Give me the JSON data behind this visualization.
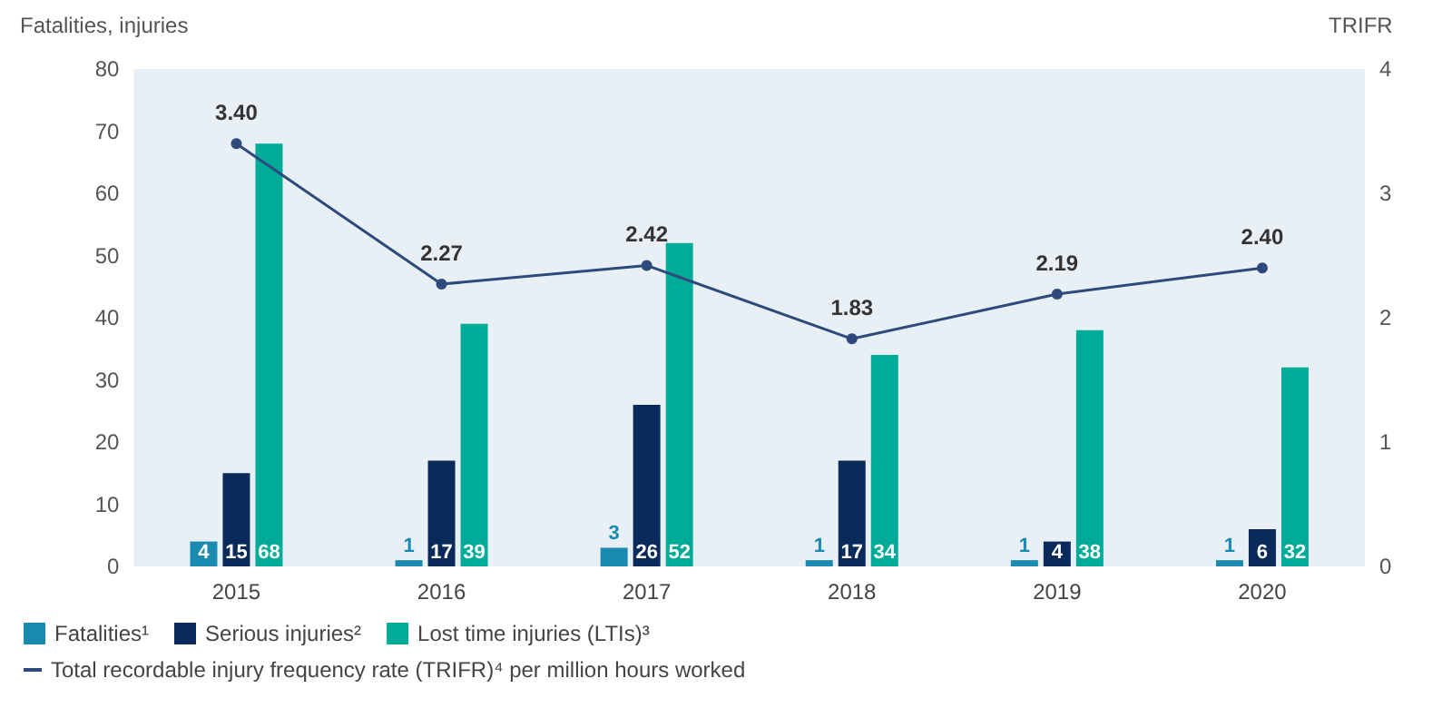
{
  "chart_data": {
    "type": "bar",
    "ylabel": "Fatalities, injuries",
    "y2label": "TRIFR",
    "categories": [
      "2015",
      "2016",
      "2017",
      "2018",
      "2019",
      "2020"
    ],
    "series": [
      {
        "name": "Fatalities¹",
        "color": "#1a8ab0",
        "values": [
          4,
          1,
          3,
          1,
          1,
          1
        ]
      },
      {
        "name": "Serious injuries²",
        "color": "#0b2a5c",
        "values": [
          15,
          17,
          26,
          17,
          4,
          6
        ]
      },
      {
        "name": "Lost time injuries (LTIs)³",
        "color": "#00ab98",
        "values": [
          68,
          39,
          52,
          34,
          38,
          32
        ]
      },
      {
        "name": "Total recordable injury frequency rate (TRIFR)⁴ per million hours worked",
        "type": "line",
        "axis": "y2",
        "color": "#2e4a7d",
        "values": [
          3.4,
          2.27,
          2.42,
          1.83,
          2.19,
          2.4
        ],
        "value_labels": [
          "3.40",
          "2.27",
          "2.42",
          "1.83",
          "2.19",
          "2.40"
        ]
      }
    ],
    "ylim": [
      0,
      80
    ],
    "yticks": [
      0,
      10,
      20,
      30,
      40,
      50,
      60,
      70,
      80
    ],
    "y2lim": [
      0,
      4
    ],
    "y2ticks": [
      0,
      1,
      2,
      3,
      4
    ],
    "data_labels": true,
    "grid": false,
    "legend": "bottom left",
    "marker": "circle",
    "line_style": "solid"
  }
}
